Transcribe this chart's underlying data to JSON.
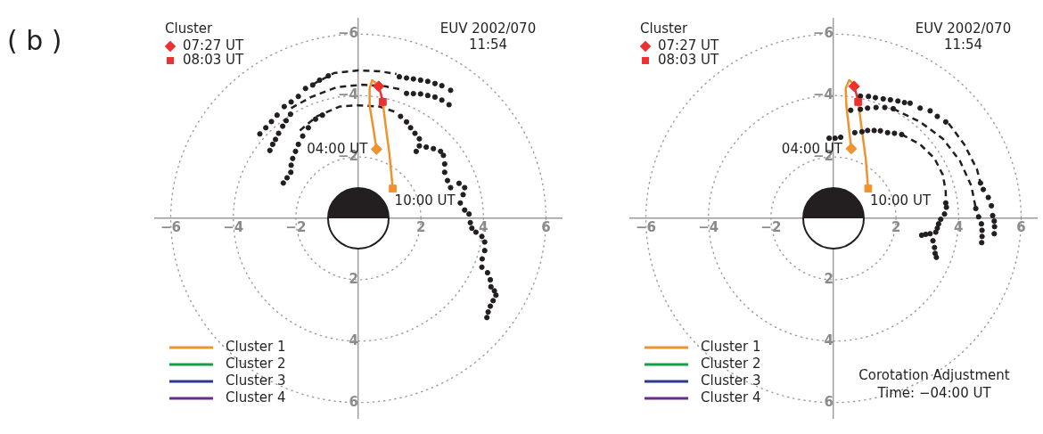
{
  "chart_data": [
    {
      "type": "scatter",
      "title": "( b )",
      "subtitle": "EUV 2002/070 11:54",
      "legend_title": "Cluster",
      "legend": "bottom left",
      "xlim": [
        -6.5,
        6.5
      ],
      "ylim": [
        6.5,
        -6.5
      ],
      "xticks": [
        {
          "value": -6,
          "label": "−6"
        },
        {
          "value": -4,
          "label": "−4"
        },
        {
          "value": -2,
          "label": "−2"
        },
        2,
        4,
        6
      ],
      "yticks": [
        {
          "value": -6,
          "label": "−6"
        },
        {
          "value": -4,
          "label": "−4"
        },
        {
          "value": -2,
          "label": "−2"
        },
        2,
        4,
        6
      ],
      "annotations": [
        {
          "text": "04:00 UT",
          "x": 0.58,
          "y": -2.25
        },
        {
          "text": "10:00 UT",
          "x": 1.1,
          "y": -0.97
        }
      ],
      "series": [
        {
          "type": "scatter",
          "marker": "circle",
          "color": "#231f20",
          "x": [
            -3.15,
            -2.96,
            -2.78,
            -2.6,
            -2.37,
            -2.15,
            -1.92,
            -1.69,
            -1.46,
            -1.24,
            -0.96,
            1.31,
            1.54,
            1.76,
            1.99,
            2.22,
            2.45,
            2.67,
            2.95,
            -2.83,
            -2.74,
            -2.65,
            -2.55,
            -2.42,
            -2.31,
            -2.17,
            1.54,
            1.76,
            1.99,
            2.22,
            2.45,
            2.67,
            2.9,
            -2.4,
            -2.28,
            -2.16,
            -2.15,
            -2.1,
            -2.01,
            -1.92,
            -1.78,
            -1.6,
            -1.37,
            -1.15,
            1.35,
            1.54,
            1.67,
            1.81,
            1.95,
            1.95,
            1.85,
            2.17,
            2.4,
            2.63,
            2.72,
            2.76,
            2.76,
            2.85,
            2.95,
            3.22,
            3.4,
            3.35,
            3.26,
            3.4,
            3.54,
            3.58,
            3.63,
            3.76,
            3.95,
            4.04,
            4.04,
            3.96,
            3.95,
            4.13,
            4.22,
            4.24,
            4.35,
            4.4,
            4.31,
            4.22,
            4.15,
            4.11
          ],
          "values": [
            -2.75,
            -2.95,
            -3.15,
            -3.36,
            -3.64,
            -3.79,
            -3.97,
            -4.23,
            -4.34,
            -4.5,
            -4.64,
            -4.61,
            -4.57,
            -4.54,
            -4.5,
            -4.46,
            -4.39,
            -4.32,
            -4.17,
            -2.21,
            -2.41,
            -2.57,
            -2.77,
            -3.0,
            -3.18,
            -3.39,
            -4.07,
            -4.06,
            -4.05,
            -4.0,
            -3.95,
            -3.85,
            -3.7,
            -1.15,
            -1.32,
            -1.5,
            -1.73,
            -1.95,
            -2.18,
            -2.41,
            -2.68,
            -2.95,
            -3.23,
            -3.36,
            -3.32,
            -3.14,
            -2.95,
            -2.77,
            -2.59,
            -2.36,
            -2.18,
            -2.32,
            -2.27,
            -2.18,
            -2.05,
            -1.77,
            -1.5,
            -1.23,
            -1.0,
            -1.14,
            -1.0,
            -0.77,
            -0.5,
            -0.27,
            -0.14,
            0.14,
            0.32,
            0.45,
            0.59,
            0.77,
            1.05,
            1.32,
            1.59,
            1.77,
            2.0,
            2.23,
            2.36,
            2.5,
            2.68,
            2.86,
            3.05,
            3.23
          ]
        },
        {
          "type": "line",
          "line_style": "dashed",
          "color": "#231f20",
          "x": [
            -1.46,
            -0.78,
            0,
            0.67,
            1.22
          ],
          "values": [
            -4.36,
            -4.73,
            -4.82,
            -4.79,
            -4.7
          ]
        },
        {
          "type": "line",
          "line_style": "dashed",
          "color": "#231f20",
          "x": [
            -2.15,
            -1.51,
            -0.69,
            0.13,
            0.85,
            1.45
          ],
          "values": [
            -3.59,
            -3.95,
            -4.27,
            -4.35,
            -4.3,
            -4.18
          ]
        },
        {
          "type": "line",
          "line_style": "dashed",
          "color": "#231f20",
          "x": [
            -1.87,
            -1.33,
            -0.6,
            0,
            0.67,
            1.22
          ],
          "values": [
            -2.86,
            -3.32,
            -3.64,
            -3.68,
            -3.64,
            -3.45
          ]
        },
        {
          "type": "line",
          "name": "Cluster 1",
          "color": "#f0922e",
          "x": [
            0.58,
            0.49,
            0.36,
            0.36,
            0.44,
            0.54,
            0.65,
            0.72,
            0.78,
            0.87,
            0.99,
            1.1
          ],
          "values": [
            -2.25,
            -2.86,
            -3.68,
            -4.22,
            -4.5,
            -4.42,
            -4.3,
            null,
            -3.79,
            -3.04,
            -2.13,
            -0.97
          ]
        },
        {
          "type": "line",
          "name": "Cluster 2",
          "color": "#13a04a"
        },
        {
          "type": "line",
          "name": "Cluster 3",
          "color": "#2b3990"
        },
        {
          "type": "line",
          "name": "Cluster 4",
          "color": "#6a2c91"
        },
        {
          "type": "line",
          "color": "#ee3130",
          "x": [
            0.65,
            0.72,
            0.78
          ],
          "values": [
            -4.3,
            -4.05,
            -3.79
          ]
        },
        {
          "type": "scatter",
          "marker": "diamond",
          "color": "#f0922e",
          "x": [
            0.58
          ],
          "values": [
            -2.25
          ]
        },
        {
          "type": "scatter",
          "marker": "square",
          "color": "#f0922e",
          "x": [
            1.1
          ],
          "values": [
            -0.97
          ]
        },
        {
          "type": "scatter",
          "marker": "diamond",
          "name": "07:27 UT",
          "color": "#ee3130",
          "x": [
            0.65
          ],
          "values": [
            -4.3
          ]
        },
        {
          "type": "scatter",
          "marker": "square",
          "name": "08:03 UT",
          "color": "#ee3130",
          "x": [
            0.78
          ],
          "values": [
            -3.79
          ]
        }
      ]
    },
    {
      "type": "scatter",
      "subtitle": "EUV 2002/070 11:54",
      "legend_title": "Cluster",
      "legend": "bottom left",
      "xlim": [
        -6.5,
        6.5
      ],
      "ylim": [
        6.5,
        -6.5
      ],
      "xticks": [
        {
          "value": -6,
          "label": "−6"
        },
        {
          "value": -4,
          "label": "−4"
        },
        {
          "value": -2,
          "label": "−2"
        },
        2,
        4,
        6
      ],
      "yticks": [
        {
          "value": -6,
          "label": "−6"
        },
        {
          "value": -4,
          "label": "−4"
        },
        {
          "value": -2,
          "label": "−2"
        },
        2,
        4,
        6
      ],
      "annotations": [
        "Corotation Adjustment Time: −04:00 UT",
        {
          "text": "04:00 UT",
          "x": 0.57,
          "y": -2.27
        },
        {
          "text": "10:00 UT",
          "x": 1.11,
          "y": -0.97
        }
      ],
      "series": [
        {
          "type": "scatter",
          "marker": "circle",
          "color": "#231f20",
          "x": [
            0.86,
            1.12,
            1.34,
            1.59,
            1.82,
            2.06,
            2.27,
            2.45,
            2.77,
            3.09,
            3.32,
            3.59,
            0.55,
            0.86,
            1.09,
            1.36,
            1.64,
            1.91,
            -0.14,
            0.05,
            0.23,
            0.68,
            0.91,
            1.09,
            1.3,
            1.5,
            1.73,
            1.95,
            2.18,
            3.59,
            3.61,
            3.55,
            3.43,
            3.36,
            3.32,
            3.27,
            3.09,
            2.95,
            2.82,
            3.18,
            3.23,
            3.25,
            3.29,
            4.55,
            4.64,
            4.73,
            4.75,
            4.75,
            4.74,
            4.7,
            4.79,
            4.95,
            5.05,
            5.09,
            5.14,
            5.15,
            5.14
          ],
          "values": [
            -3.98,
            -3.97,
            -3.93,
            -3.89,
            -3.86,
            -3.82,
            -3.77,
            -3.75,
            -3.59,
            -3.5,
            -3.32,
            -3.14,
            -3.52,
            -3.55,
            -3.59,
            -3.61,
            -3.61,
            -3.57,
            -2.61,
            -2.61,
            -2.64,
            -2.79,
            -2.82,
            -2.86,
            -2.86,
            -2.85,
            -2.79,
            -2.77,
            -2.73,
            -0.5,
            -0.36,
            -0.14,
            0.03,
            0.18,
            0.32,
            0.45,
            0.5,
            0.52,
            0.55,
            0.73,
            0.95,
            1.14,
            1.27,
            -0.32,
            -0.05,
            0.18,
            0.39,
            0.59,
            0.79,
            -1.15,
            -0.94,
            -0.68,
            -0.41,
            -0.09,
            0.09,
            0.27,
            0.5
          ]
        },
        {
          "type": "line",
          "line_style": "dashed",
          "color": "#231f20",
          "x": [
            3.68,
            4.18,
            4.59,
            4.7
          ],
          "values": [
            -3.09,
            -2.41,
            -1.59,
            -1.15
          ]
        },
        {
          "type": "line",
          "line_style": "dashed",
          "color": "#231f20",
          "x": [
            1.91,
            2.77,
            3.5,
            4.05,
            4.41,
            4.55
          ],
          "values": [
            -3.57,
            -3.14,
            -2.59,
            -1.86,
            -1.05,
            -0.32
          ]
        },
        {
          "type": "line",
          "line_style": "dashed",
          "color": "#231f20",
          "x": [
            2.18,
            2.77,
            3.23,
            3.5,
            3.59,
            3.59
          ],
          "values": [
            -2.73,
            -2.41,
            -1.95,
            -1.41,
            -0.86,
            -0.5
          ]
        },
        {
          "type": "line",
          "name": "Cluster 1",
          "color": "#f0922e",
          "x": [
            0.57,
            0.5,
            0.41,
            0.39,
            0.5,
            0.61,
            0.66,
            0.73,
            0.79,
            0.91,
            1.03,
            1.11
          ],
          "values": [
            -2.27,
            -2.86,
            -3.68,
            -4.23,
            -4.5,
            -4.41,
            -4.3,
            null,
            -3.79,
            -2.86,
            -1.95,
            -0.97
          ]
        },
        {
          "type": "line",
          "name": "Cluster 2",
          "color": "#13a04a"
        },
        {
          "type": "line",
          "name": "Cluster 3",
          "color": "#2b3990"
        },
        {
          "type": "line",
          "name": "Cluster 4",
          "color": "#6a2c91"
        },
        {
          "type": "line",
          "color": "#ee3130",
          "x": [
            0.66,
            0.73,
            0.79
          ],
          "values": [
            -4.3,
            -4.05,
            -3.79
          ]
        },
        {
          "type": "scatter",
          "marker": "diamond",
          "color": "#f0922e",
          "x": [
            0.57
          ],
          "values": [
            -2.27
          ]
        },
        {
          "type": "scatter",
          "marker": "square",
          "color": "#f0922e",
          "x": [
            1.11
          ],
          "values": [
            -0.97
          ]
        },
        {
          "type": "scatter",
          "marker": "diamond",
          "name": "07:27 UT",
          "color": "#ee3130",
          "x": [
            0.66
          ],
          "values": [
            -4.3
          ]
        },
        {
          "type": "scatter",
          "marker": "square",
          "name": "08:03 UT",
          "color": "#ee3130",
          "x": [
            0.79
          ],
          "values": [
            -3.79
          ]
        }
      ]
    }
  ]
}
